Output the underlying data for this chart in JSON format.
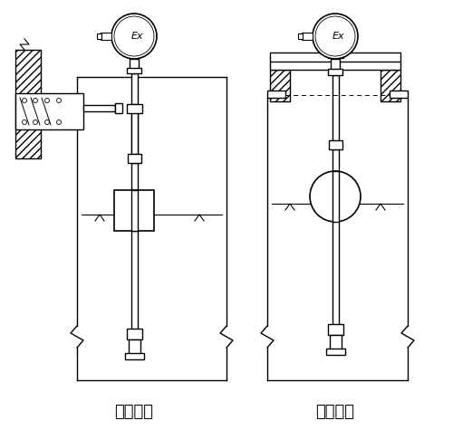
{
  "title_left": "架装固定",
  "title_right": "法兰固定",
  "bg_color": "#ffffff",
  "line_color": "#000000",
  "font_size_label": 13,
  "figure_size": [
    5.0,
    4.75
  ],
  "dpi": 100
}
